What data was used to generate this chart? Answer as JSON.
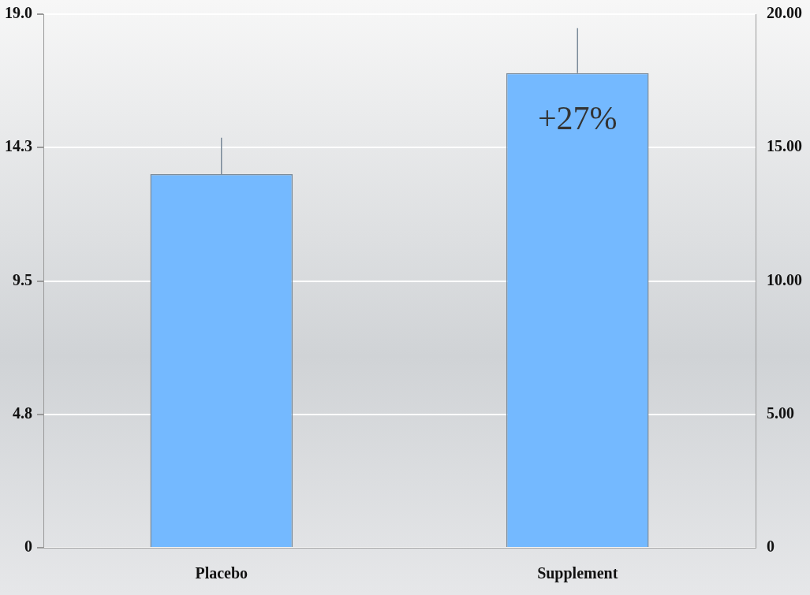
{
  "chart_data": {
    "type": "bar",
    "categories": [
      "Placebo",
      "Supplement"
    ],
    "values": [
      13.3,
      16.9
    ],
    "errors": [
      [
        13.3,
        14.6
      ],
      [
        16.9,
        18.5
      ]
    ],
    "color": "#74b9ff",
    "ylim": [
      0,
      19.0
    ],
    "yticks": [
      0,
      {
        "value": 4.75,
        "label": "4.8"
      },
      9.5,
      {
        "value": 14.25,
        "label": "14.3"
      },
      {
        "value": 19,
        "label": "19.0"
      }
    ],
    "y2lim": [
      0,
      20
    ],
    "y2ticks": [
      {
        "value": 0,
        "label": "0"
      },
      {
        "value": 5,
        "label": "5.00"
      },
      {
        "value": 10,
        "label": "10.00"
      },
      {
        "value": 15,
        "label": "15.00"
      },
      {
        "value": 20,
        "label": "20.00"
      }
    ],
    "annotations": [
      "+27%"
    ],
    "grid": "y",
    "legend": false
  }
}
